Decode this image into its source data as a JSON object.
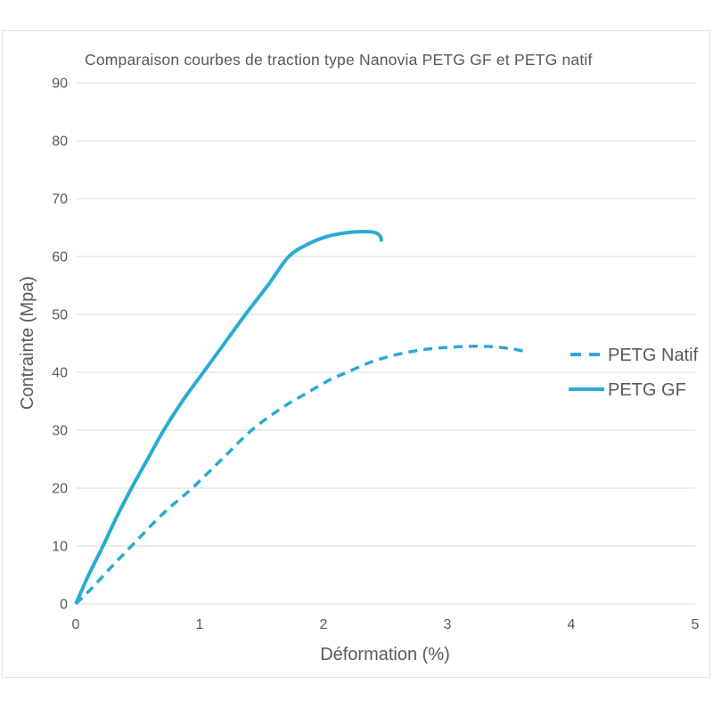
{
  "chart_data": {
    "type": "line",
    "title": "Comparaison courbes de traction type Nanovia PETG GF et PETG natif",
    "xlabel": "Déformation (%)",
    "ylabel": "Contrainte  (Mpa)",
    "xlim": [
      0,
      5
    ],
    "ylim": [
      0,
      90
    ],
    "x_ticks": [
      0,
      1,
      2,
      3,
      4,
      5
    ],
    "y_ticks": [
      0,
      10,
      20,
      30,
      40,
      50,
      60,
      70,
      80,
      90
    ],
    "grid": "horizontal-only",
    "legend_position": "right-middle",
    "series": [
      {
        "name": "PETG Natif",
        "style": "dashed",
        "color": "#29ABD2",
        "points": [
          [
            0,
            0
          ],
          [
            0.12,
            2.5
          ],
          [
            0.28,
            6.2
          ],
          [
            0.45,
            10
          ],
          [
            0.7,
            15.5
          ],
          [
            0.94,
            20
          ],
          [
            1.18,
            25
          ],
          [
            1.42,
            30
          ],
          [
            1.66,
            33.8
          ],
          [
            1.88,
            36.6
          ],
          [
            2.05,
            38.7
          ],
          [
            2.19,
            40
          ],
          [
            2.4,
            41.9
          ],
          [
            2.6,
            43.1
          ],
          [
            2.8,
            43.9
          ],
          [
            3.0,
            44.3
          ],
          [
            3.2,
            44.5
          ],
          [
            3.38,
            44.4
          ],
          [
            3.5,
            44.1
          ],
          [
            3.61,
            43.7
          ]
        ]
      },
      {
        "name": "PETG GF",
        "style": "solid",
        "color": "#29ABD2",
        "points": [
          [
            0,
            0
          ],
          [
            0.1,
            4.8
          ],
          [
            0.22,
            10
          ],
          [
            0.33,
            15
          ],
          [
            0.45,
            20
          ],
          [
            0.58,
            25
          ],
          [
            0.71,
            30
          ],
          [
            0.86,
            35
          ],
          [
            1.03,
            40
          ],
          [
            1.2,
            45
          ],
          [
            1.37,
            50
          ],
          [
            1.55,
            55
          ],
          [
            1.72,
            60
          ],
          [
            1.88,
            62.2
          ],
          [
            2.02,
            63.4
          ],
          [
            2.18,
            64.1
          ],
          [
            2.32,
            64.3
          ],
          [
            2.42,
            64.1
          ],
          [
            2.46,
            63.4
          ],
          [
            2.47,
            62.6
          ]
        ]
      }
    ]
  },
  "styles": {
    "line_color": "#29ABD2",
    "grid_color": "#D9D9D9",
    "text_color": "#595959",
    "border_color": "#E2E2E2",
    "background": "#FFFFFF"
  }
}
